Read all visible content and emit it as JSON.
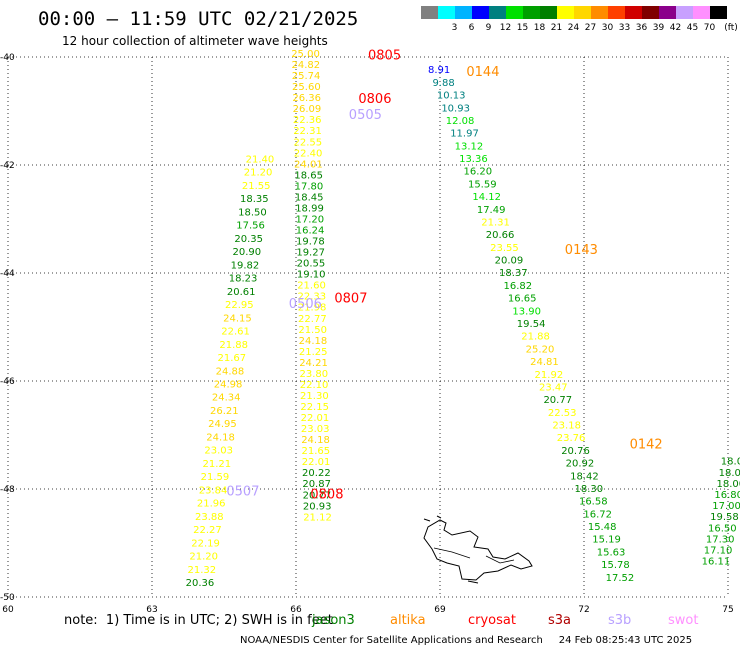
{
  "header": {
    "title": "00:00 – 11:59 UTC 02/21/2025",
    "subtitle": "12 hour collection of altimeter wave heights"
  },
  "colorbar": {
    "unit_label": "(ft)",
    "entries": [
      {
        "label": "",
        "color": "#808080"
      },
      {
        "label": "3",
        "color": "#00ffff"
      },
      {
        "label": "6",
        "color": "#00b4ff"
      },
      {
        "label": "9",
        "color": "#0000ff"
      },
      {
        "label": "12",
        "color": "#008080"
      },
      {
        "label": "15",
        "color": "#00e000"
      },
      {
        "label": "18",
        "color": "#00a000"
      },
      {
        "label": "21",
        "color": "#008000"
      },
      {
        "label": "24",
        "color": "#ffff00"
      },
      {
        "label": "27",
        "color": "#ffd700"
      },
      {
        "label": "30",
        "color": "#ff8c00"
      },
      {
        "label": "33",
        "color": "#ff4000"
      },
      {
        "label": "36",
        "color": "#d00000"
      },
      {
        "label": "39",
        "color": "#800000"
      },
      {
        "label": "42",
        "color": "#8b008b"
      },
      {
        "label": "45",
        "color": "#c8a0ff"
      },
      {
        "label": "70",
        "color": "#ff90ff"
      },
      {
        "label": "",
        "color": "#000000"
      }
    ]
  },
  "note": {
    "text": "note:  1) Time is in UTC; 2) SWH is in feet",
    "missions": [
      {
        "label": "jason3",
        "color": "#008000"
      },
      {
        "label": "altika",
        "color": "#ff8c00"
      },
      {
        "label": "cryosat",
        "color": "#ff0000"
      },
      {
        "label": "s3a",
        "color": "#b00000"
      },
      {
        "label": "s3b",
        "color": "#b8a0ff"
      },
      {
        "label": "swot",
        "color": "#ff90ff"
      }
    ]
  },
  "credit": "NOAA/NESDIS Center for Satellite Applications and Research     24 Feb 08:25:43 UTC 2025",
  "chart_data": {
    "type": "scatter",
    "title": "00:00 – 11:59 UTC 02/21/2025",
    "subtitle": "12 hour collection of altimeter wave heights",
    "xlim": [
      60,
      75
    ],
    "ylim": [
      -50,
      -40
    ],
    "x_ticks": [
      "60",
      "63",
      "66",
      "69",
      "72",
      "75"
    ],
    "y_ticks": [
      "-40",
      "-42",
      "-44",
      "-46",
      "-48",
      "-50"
    ],
    "x_tick_values": [
      60,
      63,
      66,
      69,
      72,
      75
    ],
    "y_tick_values": [
      -40,
      -42,
      -44,
      -46,
      -48,
      -50
    ],
    "grid": true,
    "time_labels": [
      {
        "text": "0805",
        "lon": 67.5,
        "lat": -40.05,
        "color": "#ff0000"
      },
      {
        "text": "0806",
        "lon": 67.3,
        "lat": -40.85,
        "color": "#ff0000"
      },
      {
        "text": "0505",
        "lon": 67.1,
        "lat": -41.15,
        "color": "#b8a0ff"
      },
      {
        "text": "0807",
        "lon": 66.8,
        "lat": -44.55,
        "color": "#ff0000"
      },
      {
        "text": "0506",
        "lon": 65.85,
        "lat": -44.65,
        "color": "#b8a0ff"
      },
      {
        "text": "0507",
        "lon": 64.55,
        "lat": -48.12,
        "color": "#b8a0ff"
      },
      {
        "text": "0808",
        "lon": 66.3,
        "lat": -48.18,
        "color": "#ff0000"
      },
      {
        "text": "0144",
        "lon": 69.55,
        "lat": -40.35,
        "color": "#ff8c00"
      },
      {
        "text": "0143",
        "lon": 71.6,
        "lat": -43.65,
        "color": "#ff8c00"
      },
      {
        "text": "0142",
        "lon": 72.95,
        "lat": -47.25,
        "color": "#ff8c00"
      }
    ],
    "series": [
      {
        "name": "altika 0144",
        "lon_start": 68.75,
        "lat_start": -40.3,
        "lon_end": 72.45,
        "lat_end": -49.7,
        "values": [
          8.91,
          9.88,
          10.13,
          10.93,
          12.08,
          11.97,
          13.12,
          13.36,
          16.2,
          15.59,
          14.12,
          17.49,
          21.31,
          20.66,
          23.55,
          20.09,
          18.37,
          16.82,
          16.65,
          13.9,
          19.54,
          21.88,
          25.2,
          24.81,
          21.92,
          23.47,
          20.77,
          22.53,
          23.18,
          23.76,
          20.76,
          20.92,
          18.42,
          18.3,
          16.58,
          16.72,
          15.48,
          15.19,
          15.63,
          15.78,
          17.52
        ]
      },
      {
        "name": "cryosat 0806",
        "lon_start": 65.9,
        "lat_start": -40.0,
        "lon_end": 66.15,
        "lat_end": -48.58,
        "values": [
          25.0,
          24.82,
          25.74,
          25.6,
          26.36,
          26.09,
          22.36,
          22.31,
          22.55,
          22.4,
          24.01,
          18.65,
          17.8,
          18.45,
          18.99,
          17.2,
          16.24,
          19.78,
          19.27,
          20.55,
          19.1,
          21.6,
          22.33,
          21.98,
          22.77,
          21.5,
          24.18,
          21.25,
          24.21,
          23.8,
          22.1,
          21.3,
          22.15,
          22.01,
          23.03,
          24.18,
          21.65,
          22.01,
          20.22,
          20.87,
          20.77,
          20.93,
          21.12
        ]
      },
      {
        "name": "s3b 0505",
        "lon_start": 64.95,
        "lat_start": -41.95,
        "lon_end": 63.7,
        "lat_end": -49.8,
        "values": [
          21.4,
          21.2,
          21.55,
          18.35,
          18.5,
          17.56,
          20.35,
          20.9,
          19.82,
          18.23,
          20.61,
          22.95,
          24.15,
          22.61,
          21.88,
          21.67,
          24.88,
          24.98,
          24.34,
          26.21,
          24.95,
          24.18,
          23.03,
          21.21,
          21.59,
          23.84,
          21.96,
          23.88,
          22.27,
          22.19,
          21.2,
          21.32,
          20.36
        ]
      },
      {
        "name": "jason3 east",
        "lon_start": 74.85,
        "lat_start": -47.55,
        "lon_end": 74.45,
        "lat_end": -49.4,
        "values": [
          18.0,
          18.0,
          18.0,
          16.8,
          17.0,
          19.58,
          16.5,
          17.3,
          17.1,
          16.11
        ]
      }
    ]
  }
}
